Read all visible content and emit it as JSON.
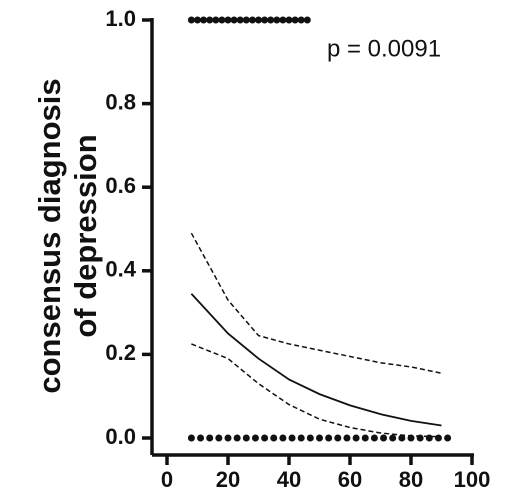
{
  "chart_data": {
    "type": "line",
    "y_label_lines": [
      "consensus diagnosis",
      "of depression"
    ],
    "annotation": "p = 0.0091",
    "xlim": [
      0,
      100
    ],
    "xticks": [
      0,
      20,
      40,
      60,
      80,
      100
    ],
    "ylim": [
      0,
      1
    ],
    "yticks": [
      {
        "value": 0,
        "label": "0.0"
      },
      {
        "value": 0.2,
        "label": "0.2"
      },
      {
        "value": 0.4,
        "label": "0.4"
      },
      {
        "value": 0.6,
        "label": "0.6"
      },
      {
        "value": 0.8,
        "label": "0.8"
      },
      {
        "value": 1,
        "label": "1.0"
      }
    ],
    "series": [
      {
        "style": "solid",
        "color": "#111111",
        "x": [
          8,
          20,
          30,
          40,
          50,
          60,
          70,
          80,
          90
        ],
        "values": [
          0.345,
          0.25,
          0.19,
          0.14,
          0.105,
          0.078,
          0.057,
          0.041,
          0.03
        ]
      },
      {
        "style": "dashed",
        "color": "#111111",
        "x": [
          8,
          20,
          30,
          40,
          50,
          60,
          70,
          80,
          90
        ],
        "values": [
          0.49,
          0.33,
          0.245,
          0.225,
          0.21,
          0.195,
          0.18,
          0.17,
          0.155
        ]
      },
      {
        "style": "dashed",
        "color": "#111111",
        "x": [
          8,
          20,
          30,
          40,
          50,
          60,
          70,
          80,
          90
        ],
        "values": [
          0.225,
          0.19,
          0.13,
          0.08,
          0.045,
          0.025,
          0.012,
          0.005,
          0.003
        ]
      },
      {
        "style": "points",
        "color": "#111111",
        "x": [
          8,
          10,
          12,
          14,
          16,
          18,
          20,
          22,
          24,
          26,
          28,
          30,
          32,
          34,
          36,
          38,
          40,
          42,
          44,
          46
        ],
        "values": [
          1,
          1,
          1,
          1,
          1,
          1,
          1,
          1,
          1,
          1,
          1,
          1,
          1,
          1,
          1,
          1,
          1,
          1,
          1,
          1
        ]
      },
      {
        "style": "points",
        "color": "#111111",
        "x": [
          8,
          11,
          14,
          17,
          20,
          23,
          26,
          29,
          32,
          35,
          38,
          41,
          44,
          47,
          50,
          53,
          56,
          59,
          62,
          65,
          68,
          71,
          74,
          77,
          80,
          83,
          86,
          89,
          92
        ],
        "values": [
          0,
          0,
          0,
          0,
          0,
          0,
          0,
          0,
          0,
          0,
          0,
          0,
          0,
          0,
          0,
          0,
          0,
          0,
          0,
          0,
          0,
          0,
          0,
          0,
          0,
          0,
          0,
          0,
          0
        ]
      }
    ]
  }
}
